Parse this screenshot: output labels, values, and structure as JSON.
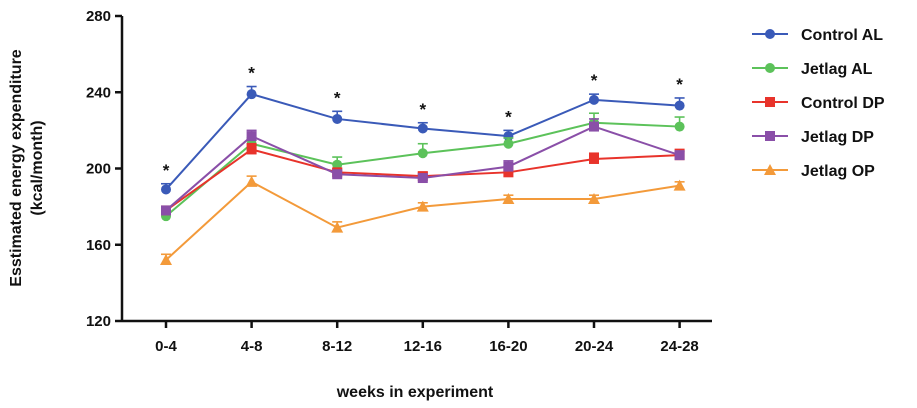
{
  "chart_data": {
    "type": "line",
    "xlabel": "weeks in experiment",
    "ylabel_line1": "Esstimated energy expenditure",
    "ylabel_line2": "(kcal/month)",
    "categories": [
      "0-4",
      "4-8",
      "8-12",
      "12-16",
      "16-20",
      "20-24",
      "24-28"
    ],
    "ylim": [
      120,
      280
    ],
    "yticks": [
      120,
      160,
      200,
      240,
      280
    ],
    "grid": false,
    "legend_position": "right",
    "significance_marker": "*",
    "significant_categories": [
      "0-4",
      "4-8",
      "8-12",
      "12-16",
      "16-20",
      "20-24",
      "24-28"
    ],
    "series": [
      {
        "name": "Control AL",
        "color": "#3a5ab8",
        "marker": "circle",
        "values": [
          189,
          239,
          226,
          221,
          217,
          236,
          233
        ],
        "errors": [
          3,
          4,
          4,
          3,
          3,
          3,
          4
        ]
      },
      {
        "name": "Jetlag AL",
        "color": "#5cc25a",
        "marker": "circle",
        "values": [
          175,
          213,
          202,
          208,
          213,
          224,
          222
        ],
        "errors": [
          2,
          3,
          4,
          5,
          3,
          5,
          5
        ]
      },
      {
        "name": "Control DP",
        "color": "#e8332b",
        "marker": "square",
        "values": [
          178,
          210,
          198,
          196,
          198,
          205,
          207
        ],
        "errors": [
          2,
          3,
          2,
          2,
          3,
          3,
          3
        ]
      },
      {
        "name": "Jetlag DP",
        "color": "#8a4fa8",
        "marker": "square",
        "values": [
          178,
          217,
          197,
          195,
          201,
          222,
          207
        ],
        "errors": [
          2,
          3,
          2,
          2,
          3,
          4,
          2
        ]
      },
      {
        "name": "Jetlag OP",
        "color": "#f39a3a",
        "marker": "triangle",
        "values": [
          152,
          193,
          169,
          180,
          184,
          184,
          191
        ],
        "errors": [
          3,
          3,
          3,
          2,
          2,
          2,
          2
        ]
      }
    ]
  }
}
